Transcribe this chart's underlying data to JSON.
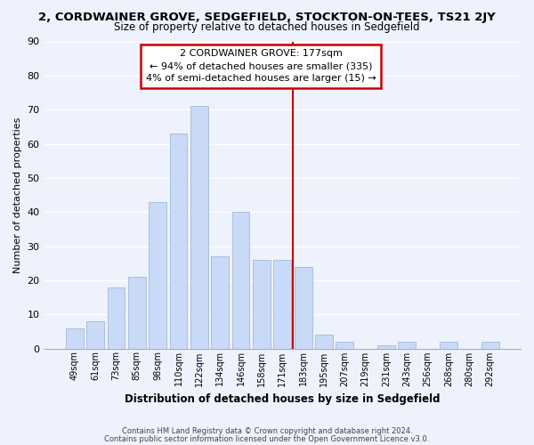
{
  "title": "2, CORDWAINER GROVE, SEDGEFIELD, STOCKTON-ON-TEES, TS21 2JY",
  "subtitle": "Size of property relative to detached houses in Sedgefield",
  "xlabel": "Distribution of detached houses by size in Sedgefield",
  "ylabel": "Number of detached properties",
  "bar_labels": [
    "49sqm",
    "61sqm",
    "73sqm",
    "85sqm",
    "98sqm",
    "110sqm",
    "122sqm",
    "134sqm",
    "146sqm",
    "158sqm",
    "171sqm",
    "183sqm",
    "195sqm",
    "207sqm",
    "219sqm",
    "231sqm",
    "243sqm",
    "256sqm",
    "268sqm",
    "280sqm",
    "292sqm"
  ],
  "bar_values": [
    6,
    8,
    18,
    21,
    43,
    63,
    71,
    27,
    40,
    26,
    26,
    24,
    4,
    2,
    0,
    1,
    2,
    0,
    2,
    0,
    2
  ],
  "bar_color": "#c9daf8",
  "bar_edge_color": "#a4b8d4",
  "vline_x_index": 10.5,
  "vline_color": "#cc0000",
  "annotation_title": "2 CORDWAINER GROVE: 177sqm",
  "annotation_line1": "← 94% of detached houses are smaller (335)",
  "annotation_line2": "4% of semi-detached houses are larger (15) →",
  "footer_line1": "Contains HM Land Registry data © Crown copyright and database right 2024.",
  "footer_line2": "Contains public sector information licensed under the Open Government Licence v3.0.",
  "ylim": [
    0,
    90
  ],
  "yticks": [
    0,
    10,
    20,
    30,
    40,
    50,
    60,
    70,
    80,
    90
  ],
  "background_color": "#eef2fc",
  "grid_color": "#ffffff"
}
